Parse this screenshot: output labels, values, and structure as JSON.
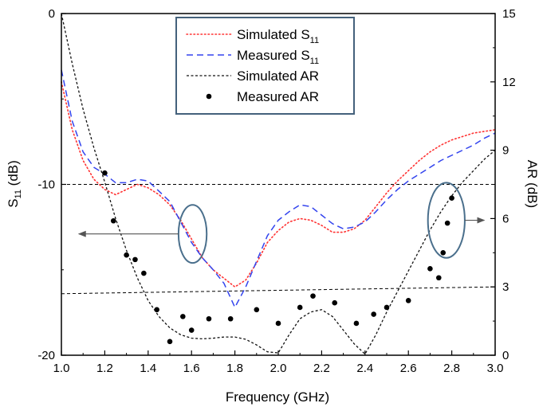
{
  "chart_data": {
    "type": "line",
    "xlabel": "Frequency (GHz)",
    "ylabel_left": "S11 (dB)",
    "ylabel_left_parts": {
      "main": "S",
      "sub": "11",
      "rest": " (dB)"
    },
    "ylabel_right": "AR (dB)",
    "xlim": [
      1.0,
      3.0
    ],
    "ylim_left": [
      -20,
      0
    ],
    "ylim_right": [
      0,
      15
    ],
    "x_ticks": [
      "1.0",
      "1.2",
      "1.4",
      "1.6",
      "1.8",
      "2.0",
      "2.2",
      "2.4",
      "2.6",
      "2.8",
      "3.0"
    ],
    "y_left_ticks": [
      "0",
      "-10",
      "-20"
    ],
    "y_right_ticks": [
      "15",
      "12",
      "9",
      "6",
      "3",
      "0"
    ],
    "grid": false,
    "legend_placement": "top-center",
    "series": [
      {
        "name": "Simulated S11",
        "legend": {
          "main": "Simulated S",
          "sub": "11"
        },
        "axis": "left",
        "style": "dotted",
        "color": "#ff3333",
        "x": [
          1.0,
          1.05,
          1.1,
          1.15,
          1.2,
          1.25,
          1.3,
          1.35,
          1.4,
          1.45,
          1.5,
          1.55,
          1.6,
          1.65,
          1.7,
          1.75,
          1.8,
          1.85,
          1.9,
          1.95,
          2.0,
          2.05,
          2.1,
          2.15,
          2.2,
          2.25,
          2.3,
          2.35,
          2.4,
          2.45,
          2.5,
          2.55,
          2.6,
          2.65,
          2.7,
          2.75,
          2.8,
          2.85,
          2.9,
          2.95,
          3.0
        ],
        "values": [
          -4.0,
          -6.8,
          -8.6,
          -9.7,
          -10.3,
          -10.6,
          -10.3,
          -10.0,
          -10.2,
          -10.6,
          -11.2,
          -12.1,
          -13.2,
          -14.3,
          -15.0,
          -15.5,
          -16.0,
          -15.6,
          -14.6,
          -13.4,
          -12.7,
          -12.2,
          -12.0,
          -12.1,
          -12.4,
          -12.8,
          -12.8,
          -12.6,
          -12.1,
          -11.3,
          -10.5,
          -9.8,
          -9.2,
          -8.6,
          -8.1,
          -7.7,
          -7.4,
          -7.2,
          -7.0,
          -6.9,
          -6.8
        ]
      },
      {
        "name": "Measured S11",
        "legend": {
          "main": "Measured S",
          "sub": "11"
        },
        "axis": "left",
        "style": "dashed",
        "color": "#3344ee",
        "x": [
          1.0,
          1.05,
          1.1,
          1.15,
          1.2,
          1.25,
          1.3,
          1.35,
          1.4,
          1.45,
          1.5,
          1.55,
          1.6,
          1.65,
          1.7,
          1.75,
          1.8,
          1.85,
          1.9,
          1.95,
          2.0,
          2.05,
          2.1,
          2.15,
          2.2,
          2.25,
          2.3,
          2.35,
          2.4,
          2.45,
          2.5,
          2.55,
          2.6,
          2.65,
          2.7,
          2.75,
          2.8,
          2.85,
          2.9,
          2.95,
          3.0
        ],
        "values": [
          -3.3,
          -6.3,
          -8.1,
          -9.0,
          -9.4,
          -9.9,
          -9.9,
          -9.7,
          -9.8,
          -10.4,
          -11.0,
          -12.2,
          -13.4,
          -14.3,
          -15.0,
          -15.8,
          -17.2,
          -16.0,
          -14.5,
          -13.0,
          -12.1,
          -11.6,
          -11.2,
          -11.3,
          -11.8,
          -12.3,
          -12.6,
          -12.5,
          -12.2,
          -11.6,
          -10.9,
          -10.3,
          -9.8,
          -9.4,
          -9.0,
          -8.6,
          -8.3,
          -8.0,
          -7.7,
          -7.3,
          -7.0
        ]
      },
      {
        "name": "Simulated AR",
        "legend": {
          "main": "Simulated AR",
          "sub": ""
        },
        "axis": "right",
        "style": "short-dash",
        "color": "#111111",
        "x": [
          1.0,
          1.05,
          1.1,
          1.15,
          1.2,
          1.25,
          1.3,
          1.35,
          1.4,
          1.45,
          1.5,
          1.55,
          1.6,
          1.65,
          1.7,
          1.75,
          1.8,
          1.85,
          1.9,
          1.95,
          2.0,
          2.05,
          2.1,
          2.15,
          2.2,
          2.25,
          2.3,
          2.35,
          2.4,
          2.45,
          2.5,
          2.55,
          2.6,
          2.65,
          2.7,
          2.75,
          2.8,
          2.85,
          2.9,
          2.95,
          3.0
        ],
        "values": [
          15.0,
          12.8,
          10.8,
          9.1,
          7.6,
          6.0,
          4.6,
          3.4,
          2.4,
          1.7,
          1.2,
          0.9,
          0.75,
          0.72,
          0.75,
          0.8,
          0.8,
          0.7,
          0.45,
          0.15,
          0.1,
          0.9,
          1.6,
          1.9,
          2.0,
          1.7,
          1.1,
          0.5,
          0.05,
          0.9,
          1.9,
          2.8,
          3.7,
          4.6,
          5.5,
          6.3,
          7.0,
          7.6,
          8.1,
          8.6,
          9.0
        ]
      },
      {
        "name": "Measured AR",
        "legend": {
          "main": "Measured AR",
          "sub": ""
        },
        "axis": "right",
        "style": "markers",
        "color": "#000000",
        "x": [
          1.2,
          1.24,
          1.3,
          1.34,
          1.38,
          1.44,
          1.5,
          1.56,
          1.6,
          1.68,
          1.78,
          1.9,
          2.0,
          2.1,
          2.16,
          2.26,
          2.36,
          2.44,
          2.5,
          2.6,
          2.7,
          2.74,
          2.76,
          2.78,
          2.8
        ],
        "values": [
          8.0,
          5.9,
          4.4,
          4.2,
          3.6,
          2.0,
          0.6,
          1.7,
          1.1,
          1.6,
          1.6,
          2.0,
          1.4,
          2.1,
          2.6,
          2.3,
          1.4,
          1.8,
          2.1,
          2.4,
          3.8,
          3.4,
          4.5,
          5.8,
          6.9
        ]
      }
    ],
    "reference_lines": [
      {
        "axis": "left",
        "style": "dashed",
        "x": [
          1.0,
          3.0
        ],
        "values": [
          -10,
          -10
        ]
      },
      {
        "axis": "right",
        "style": "dashed",
        "x": [
          1.0,
          3.0
        ],
        "values": [
          2.7,
          3.0
        ]
      }
    ],
    "annotations": [
      {
        "type": "ellipse",
        "cx": 1.605,
        "cy_left": -12.9,
        "rx": 0.065,
        "ry_left": 1.7,
        "arrow_to_x": 1.08,
        "direction": "left"
      },
      {
        "type": "ellipse",
        "cx": 2.775,
        "cy_left": -12.1,
        "rx": 0.085,
        "ry_left": 2.2,
        "arrow_to_x": 2.95,
        "direction": "right"
      }
    ]
  }
}
